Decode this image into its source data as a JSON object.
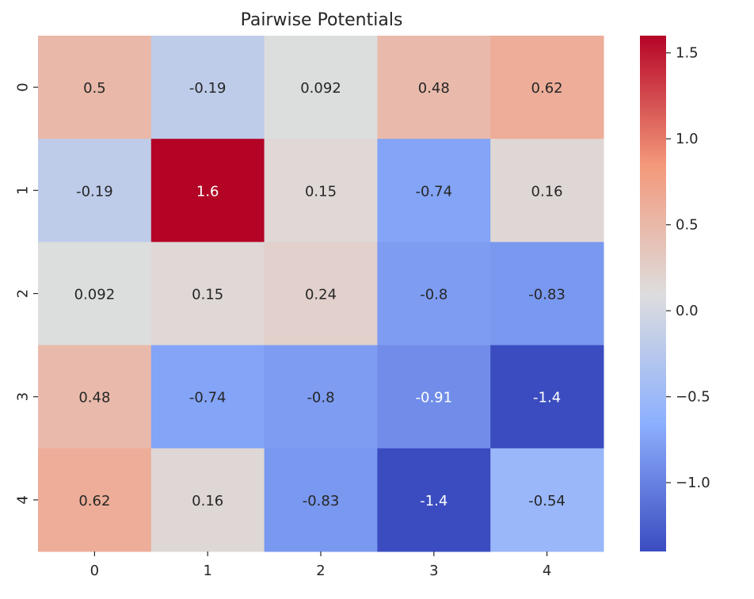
{
  "chart_data": {
    "type": "heatmap",
    "title": "Pairwise Potentials",
    "xlabel": "",
    "ylabel": "",
    "x_categories": [
      "0",
      "1",
      "2",
      "3",
      "4"
    ],
    "y_categories": [
      "0",
      "1",
      "2",
      "3",
      "4"
    ],
    "values": [
      [
        0.5,
        -0.19,
        0.092,
        0.48,
        0.62
      ],
      [
        -0.19,
        1.6,
        0.15,
        -0.74,
        0.16
      ],
      [
        0.092,
        0.15,
        0.24,
        -0.8,
        -0.83
      ],
      [
        0.48,
        -0.74,
        -0.8,
        -0.91,
        -1.4
      ],
      [
        0.62,
        0.16,
        -0.83,
        -1.4,
        -0.54
      ]
    ],
    "annotations": [
      [
        "0.5",
        "-0.19",
        "0.092",
        "0.48",
        "0.62"
      ],
      [
        "-0.19",
        "1.6",
        "0.15",
        "-0.74",
        "0.16"
      ],
      [
        "0.092",
        "0.15",
        "0.24",
        "-0.8",
        "-0.83"
      ],
      [
        "0.48",
        "-0.74",
        "-0.8",
        "-0.91",
        "-1.4"
      ],
      [
        "0.62",
        "0.16",
        "-0.83",
        "-1.4",
        "-0.54"
      ]
    ],
    "colormap": "coolwarm",
    "vmin": -1.4,
    "vmax": 1.6,
    "colorbar": {
      "ticks": [
        1.5,
        1.0,
        0.5,
        0.0,
        -0.5,
        -1.0
      ],
      "tick_labels": [
        "1.5",
        "1.0",
        "0.5",
        "0.0",
        "−0.5",
        "−1.0"
      ]
    },
    "grid": false,
    "legend": "colorbar-right"
  }
}
